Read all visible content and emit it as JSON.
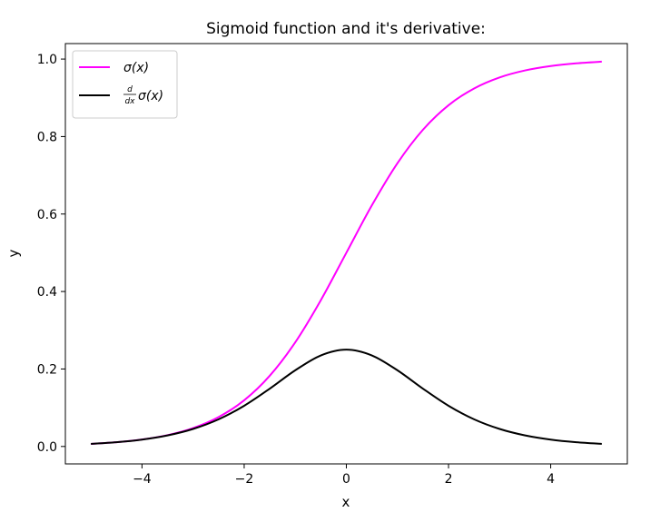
{
  "chart_data": {
    "type": "line",
    "title": "Sigmoid function and it's derivative:",
    "xlabel": "x",
    "ylabel": "y",
    "xlim": [
      -5.5,
      5.5
    ],
    "ylim": [
      -0.045,
      1.04
    ],
    "xticks": [
      -4,
      -2,
      0,
      2,
      4
    ],
    "xtick_labels": [
      "−4",
      "−2",
      "0",
      "2",
      "4"
    ],
    "yticks": [
      0.0,
      0.2,
      0.4,
      0.6,
      0.8,
      1.0
    ],
    "ytick_labels": [
      "0.0",
      "0.2",
      "0.4",
      "0.6",
      "0.8",
      "1.0"
    ],
    "grid": false,
    "legend_position": "top-left",
    "x": [
      -5,
      -4.5,
      -4,
      -3.5,
      -3,
      -2.5,
      -2,
      -1.5,
      -1,
      -0.5,
      0,
      0.5,
      1,
      1.5,
      2,
      2.5,
      3,
      3.5,
      4,
      4.5,
      5
    ],
    "series": [
      {
        "name": "σ(x)",
        "color": "#ff00ff",
        "values": [
          0.0067,
          0.011,
          0.018,
          0.0293,
          0.0474,
          0.0759,
          0.1192,
          0.1824,
          0.2689,
          0.3775,
          0.5,
          0.6225,
          0.7311,
          0.8176,
          0.8808,
          0.9241,
          0.9526,
          0.9707,
          0.982,
          0.989,
          0.9933
        ]
      },
      {
        "name": "σ(x)",
        "name_prefix_fraction": {
          "numerator": "d",
          "denominator": "dx"
        },
        "color": "#000000",
        "values": [
          0.0066,
          0.0109,
          0.0177,
          0.0285,
          0.0452,
          0.0701,
          0.105,
          0.1491,
          0.1966,
          0.235,
          0.25,
          0.235,
          0.1966,
          0.1491,
          0.105,
          0.0701,
          0.0452,
          0.0285,
          0.0177,
          0.0109,
          0.0066
        ]
      }
    ]
  }
}
